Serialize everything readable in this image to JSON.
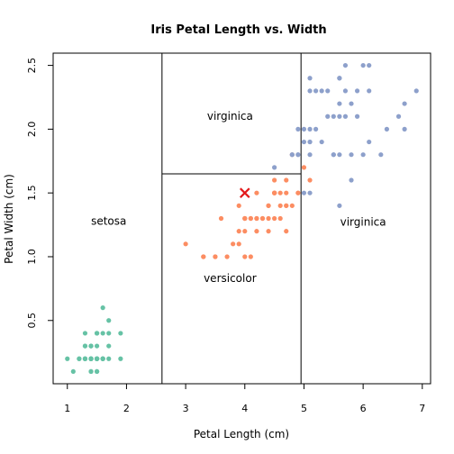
{
  "chart_data": {
    "type": "scatter",
    "title": "Iris Petal Length vs. Width",
    "xlabel": "Petal Length (cm)",
    "ylabel": "Petal Width (cm)",
    "xlim": [
      0.76,
      7.14
    ],
    "ylim": [
      0.004,
      2.596
    ],
    "grid": false,
    "x_ticks": [
      1,
      2,
      3,
      4,
      5,
      6,
      7
    ],
    "x_tick_labels": [
      "1",
      "2",
      "3",
      "4",
      "5",
      "6",
      "7"
    ],
    "y_ticks": [
      0.5,
      1.0,
      1.5,
      2.0,
      2.5
    ],
    "y_tick_labels": [
      "0.5",
      "1.0",
      "1.5",
      "2.0",
      "2.5"
    ],
    "colors": {
      "setosa": "#66c2a5",
      "versicolor": "#fc8d62",
      "virginica": "#8da0cb",
      "marker": "#e31a1c"
    },
    "series": [
      {
        "name": "setosa",
        "points": [
          [
            1.4,
            0.2
          ],
          [
            1.4,
            0.2
          ],
          [
            1.3,
            0.2
          ],
          [
            1.5,
            0.2
          ],
          [
            1.4,
            0.2
          ],
          [
            1.7,
            0.4
          ],
          [
            1.4,
            0.3
          ],
          [
            1.5,
            0.2
          ],
          [
            1.4,
            0.2
          ],
          [
            1.5,
            0.1
          ],
          [
            1.5,
            0.2
          ],
          [
            1.6,
            0.2
          ],
          [
            1.4,
            0.1
          ],
          [
            1.1,
            0.1
          ],
          [
            1.2,
            0.2
          ],
          [
            1.5,
            0.4
          ],
          [
            1.3,
            0.4
          ],
          [
            1.4,
            0.3
          ],
          [
            1.7,
            0.3
          ],
          [
            1.5,
            0.3
          ],
          [
            1.7,
            0.2
          ],
          [
            1.5,
            0.4
          ],
          [
            1.0,
            0.2
          ],
          [
            1.7,
            0.5
          ],
          [
            1.9,
            0.2
          ],
          [
            1.6,
            0.2
          ],
          [
            1.6,
            0.4
          ],
          [
            1.5,
            0.2
          ],
          [
            1.4,
            0.2
          ],
          [
            1.6,
            0.2
          ],
          [
            1.6,
            0.2
          ],
          [
            1.5,
            0.4
          ],
          [
            1.5,
            0.1
          ],
          [
            1.4,
            0.2
          ],
          [
            1.5,
            0.2
          ],
          [
            1.2,
            0.2
          ],
          [
            1.3,
            0.2
          ],
          [
            1.4,
            0.1
          ],
          [
            1.3,
            0.2
          ],
          [
            1.5,
            0.2
          ],
          [
            1.3,
            0.3
          ],
          [
            1.3,
            0.3
          ],
          [
            1.3,
            0.2
          ],
          [
            1.6,
            0.6
          ],
          [
            1.9,
            0.4
          ],
          [
            1.4,
            0.3
          ],
          [
            1.6,
            0.2
          ],
          [
            1.4,
            0.2
          ],
          [
            1.5,
            0.2
          ],
          [
            1.4,
            0.2
          ]
        ]
      },
      {
        "name": "versicolor",
        "points": [
          [
            4.7,
            1.4
          ],
          [
            4.5,
            1.5
          ],
          [
            4.9,
            1.5
          ],
          [
            4.0,
            1.3
          ],
          [
            4.6,
            1.5
          ],
          [
            4.5,
            1.3
          ],
          [
            4.7,
            1.6
          ],
          [
            3.3,
            1.0
          ],
          [
            4.6,
            1.3
          ],
          [
            3.9,
            1.4
          ],
          [
            3.5,
            1.0
          ],
          [
            4.2,
            1.5
          ],
          [
            4.0,
            1.0
          ],
          [
            4.7,
            1.4
          ],
          [
            3.6,
            1.3
          ],
          [
            4.4,
            1.4
          ],
          [
            4.5,
            1.5
          ],
          [
            4.1,
            1.0
          ],
          [
            4.5,
            1.5
          ],
          [
            3.9,
            1.1
          ],
          [
            4.8,
            1.8
          ],
          [
            4.0,
            1.3
          ],
          [
            4.9,
            1.5
          ],
          [
            4.7,
            1.2
          ],
          [
            4.3,
            1.3
          ],
          [
            4.4,
            1.4
          ],
          [
            4.8,
            1.4
          ],
          [
            5.0,
            1.7
          ],
          [
            4.5,
            1.5
          ],
          [
            3.5,
            1.0
          ],
          [
            3.8,
            1.1
          ],
          [
            3.7,
            1.0
          ],
          [
            3.9,
            1.2
          ],
          [
            5.1,
            1.6
          ],
          [
            4.5,
            1.5
          ],
          [
            4.5,
            1.6
          ],
          [
            4.7,
            1.5
          ],
          [
            4.4,
            1.3
          ],
          [
            4.1,
            1.3
          ],
          [
            4.0,
            1.3
          ],
          [
            4.4,
            1.2
          ],
          [
            4.6,
            1.4
          ],
          [
            4.0,
            1.2
          ],
          [
            3.3,
            1.0
          ],
          [
            4.2,
            1.3
          ],
          [
            4.2,
            1.2
          ],
          [
            4.2,
            1.3
          ],
          [
            4.3,
            1.3
          ],
          [
            3.0,
            1.1
          ],
          [
            4.1,
            1.3
          ]
        ]
      },
      {
        "name": "virginica",
        "points": [
          [
            6.0,
            2.5
          ],
          [
            5.1,
            1.9
          ],
          [
            5.9,
            2.1
          ],
          [
            5.6,
            1.8
          ],
          [
            5.8,
            2.2
          ],
          [
            6.6,
            2.1
          ],
          [
            4.5,
            1.7
          ],
          [
            6.3,
            1.8
          ],
          [
            5.8,
            1.8
          ],
          [
            6.1,
            2.5
          ],
          [
            5.1,
            2.0
          ],
          [
            5.3,
            1.9
          ],
          [
            5.5,
            2.1
          ],
          [
            5.0,
            2.0
          ],
          [
            5.1,
            2.4
          ],
          [
            5.3,
            2.3
          ],
          [
            5.5,
            1.8
          ],
          [
            6.7,
            2.2
          ],
          [
            6.9,
            2.3
          ],
          [
            5.0,
            1.5
          ],
          [
            5.7,
            2.3
          ],
          [
            4.9,
            2.0
          ],
          [
            6.7,
            2.0
          ],
          [
            4.9,
            1.8
          ],
          [
            5.7,
            2.1
          ],
          [
            6.0,
            1.8
          ],
          [
            4.8,
            1.8
          ],
          [
            4.9,
            1.8
          ],
          [
            5.6,
            2.1
          ],
          [
            5.8,
            1.6
          ],
          [
            6.1,
            1.9
          ],
          [
            6.4,
            2.0
          ],
          [
            5.6,
            2.2
          ],
          [
            5.1,
            1.5
          ],
          [
            5.6,
            1.4
          ],
          [
            6.1,
            2.3
          ],
          [
            5.6,
            2.4
          ],
          [
            5.5,
            1.8
          ],
          [
            4.8,
            1.8
          ],
          [
            5.4,
            2.1
          ],
          [
            5.6,
            2.4
          ],
          [
            5.1,
            2.3
          ],
          [
            5.1,
            1.9
          ],
          [
            5.9,
            2.3
          ],
          [
            5.7,
            2.5
          ],
          [
            5.2,
            2.3
          ],
          [
            5.0,
            1.9
          ],
          [
            5.2,
            2.0
          ],
          [
            5.4,
            2.3
          ],
          [
            5.1,
            1.8
          ]
        ]
      }
    ],
    "highlight_point": [
      4.0,
      1.5
    ],
    "splits": [
      {
        "orientation": "vertical",
        "x": 2.6,
        "y_from": "bottom",
        "y_to": "top"
      },
      {
        "orientation": "horizontal",
        "y": 1.65,
        "x_from": 2.6,
        "x_to": 4.95
      },
      {
        "orientation": "vertical",
        "x": 4.95,
        "y_from": "bottom",
        "y_to": "top"
      }
    ],
    "region_labels": [
      {
        "text": "setosa",
        "x": 1.7,
        "y": 1.28
      },
      {
        "text": "virginica",
        "x": 3.75,
        "y": 2.1
      },
      {
        "text": "versicolor",
        "x": 3.75,
        "y": 0.83
      },
      {
        "text": "virginica",
        "x": 6.0,
        "y": 1.27
      }
    ]
  }
}
